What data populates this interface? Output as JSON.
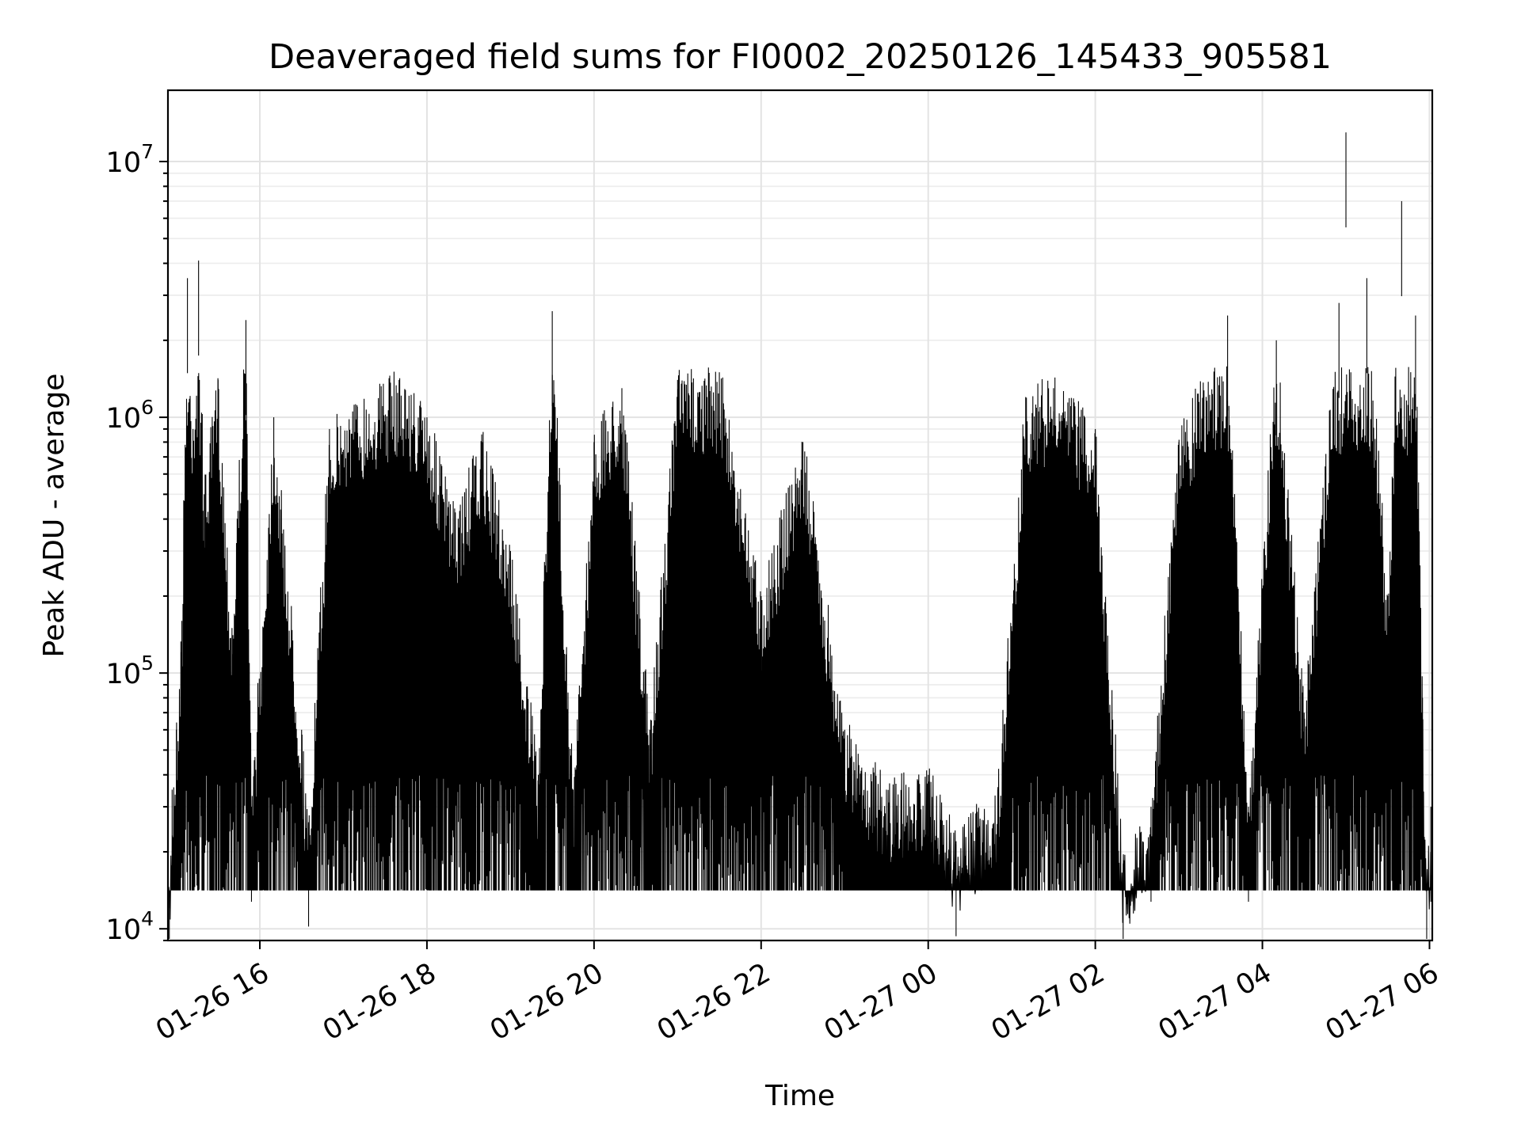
{
  "chart_data": {
    "type": "line",
    "title": "Deaveraged field sums for FI0002_20250126_145433_905581",
    "xlabel": "Time",
    "ylabel": "Peak ADU - average",
    "y_scale": "log",
    "ylim": [
      9000,
      19000000
    ],
    "xlim": [
      "2025-01-26 14:54",
      "2025-01-27 06:02"
    ],
    "grid": true,
    "legend": "none",
    "line_color": "#000000",
    "x_ticks": [
      {
        "t": "2025-01-26 16:00",
        "label": "01-26 16"
      },
      {
        "t": "2025-01-26 18:00",
        "label": "01-26 18"
      },
      {
        "t": "2025-01-26 20:00",
        "label": "01-26 20"
      },
      {
        "t": "2025-01-26 22:00",
        "label": "01-26 22"
      },
      {
        "t": "2025-01-27 00:00",
        "label": "01-27 00"
      },
      {
        "t": "2025-01-27 02:00",
        "label": "01-27 02"
      },
      {
        "t": "2025-01-27 04:00",
        "label": "01-27 04"
      },
      {
        "t": "2025-01-27 06:00",
        "label": "01-27 06"
      }
    ],
    "y_ticks": [
      {
        "value": 10000,
        "base": "10",
        "exp": "4"
      },
      {
        "value": 100000,
        "base": "10",
        "exp": "5"
      },
      {
        "value": 1000000,
        "base": "10",
        "exp": "6"
      },
      {
        "value": 10000000,
        "base": "10",
        "exp": "7"
      }
    ],
    "series": [
      {
        "points": [
          [
            "2025-01-26 14:55",
            13000
          ],
          [
            "2025-01-26 14:57",
            35000
          ],
          [
            "2025-01-26 15:00",
            60000
          ],
          [
            "2025-01-26 15:04",
            160000
          ],
          [
            "2025-01-26 15:08",
            3500000
          ],
          [
            "2025-01-26 15:12",
            900000
          ],
          [
            "2025-01-26 15:16",
            4100000
          ],
          [
            "2025-01-26 15:20",
            500000
          ],
          [
            "2025-01-26 15:30",
            1400000
          ],
          [
            "2025-01-26 15:40",
            150000
          ],
          [
            "2025-01-26 15:50",
            2400000
          ],
          [
            "2025-01-26 15:54",
            30000
          ],
          [
            "2025-01-26 16:10",
            1000000
          ],
          [
            "2025-01-26 16:30",
            60000
          ],
          [
            "2025-01-26 16:35",
            24000
          ],
          [
            "2025-01-26 16:50",
            900000
          ],
          [
            "2025-01-26 17:10",
            1100000
          ],
          [
            "2025-01-26 17:40",
            1400000
          ],
          [
            "2025-01-26 18:00",
            1000000
          ],
          [
            "2025-01-26 18:20",
            400000
          ],
          [
            "2025-01-26 18:40",
            800000
          ],
          [
            "2025-01-26 19:00",
            300000
          ],
          [
            "2025-01-26 19:20",
            40000
          ],
          [
            "2025-01-26 19:30",
            2600000
          ],
          [
            "2025-01-26 19:45",
            35000
          ],
          [
            "2025-01-26 20:00",
            800000
          ],
          [
            "2025-01-26 20:20",
            1300000
          ],
          [
            "2025-01-26 20:40",
            60000
          ],
          [
            "2025-01-26 21:00",
            1400000
          ],
          [
            "2025-01-26 21:30",
            1500000
          ],
          [
            "2025-01-26 22:00",
            200000
          ],
          [
            "2025-01-26 22:30",
            800000
          ],
          [
            "2025-01-26 23:00",
            60000
          ],
          [
            "2025-01-26 23:30",
            35000
          ],
          [
            "2025-01-27 00:00",
            40000
          ],
          [
            "2025-01-27 00:20",
            22000
          ],
          [
            "2025-01-27 00:50",
            35000
          ],
          [
            "2025-01-27 01:10",
            1200000
          ],
          [
            "2025-01-27 01:30",
            1300000
          ],
          [
            "2025-01-27 02:00",
            900000
          ],
          [
            "2025-01-27 02:20",
            18000
          ],
          [
            "2025-01-27 02:40",
            30000
          ],
          [
            "2025-01-27 03:00",
            800000
          ],
          [
            "2025-01-27 03:35",
            2500000
          ],
          [
            "2025-01-27 03:50",
            30000
          ],
          [
            "2025-01-27 04:10",
            2000000
          ],
          [
            "2025-01-27 04:30",
            70000
          ],
          [
            "2025-01-27 04:55",
            2800000
          ],
          [
            "2025-01-27 05:00",
            13000000
          ],
          [
            "2025-01-27 05:15",
            3500000
          ],
          [
            "2025-01-27 05:30",
            200000
          ],
          [
            "2025-01-27 05:40",
            7000000
          ],
          [
            "2025-01-27 05:50",
            2500000
          ],
          [
            "2025-01-27 05:55",
            80000
          ],
          [
            "2025-01-27 05:58",
            15000
          ],
          [
            "2025-01-27 06:01",
            30000
          ]
        ]
      }
    ]
  }
}
